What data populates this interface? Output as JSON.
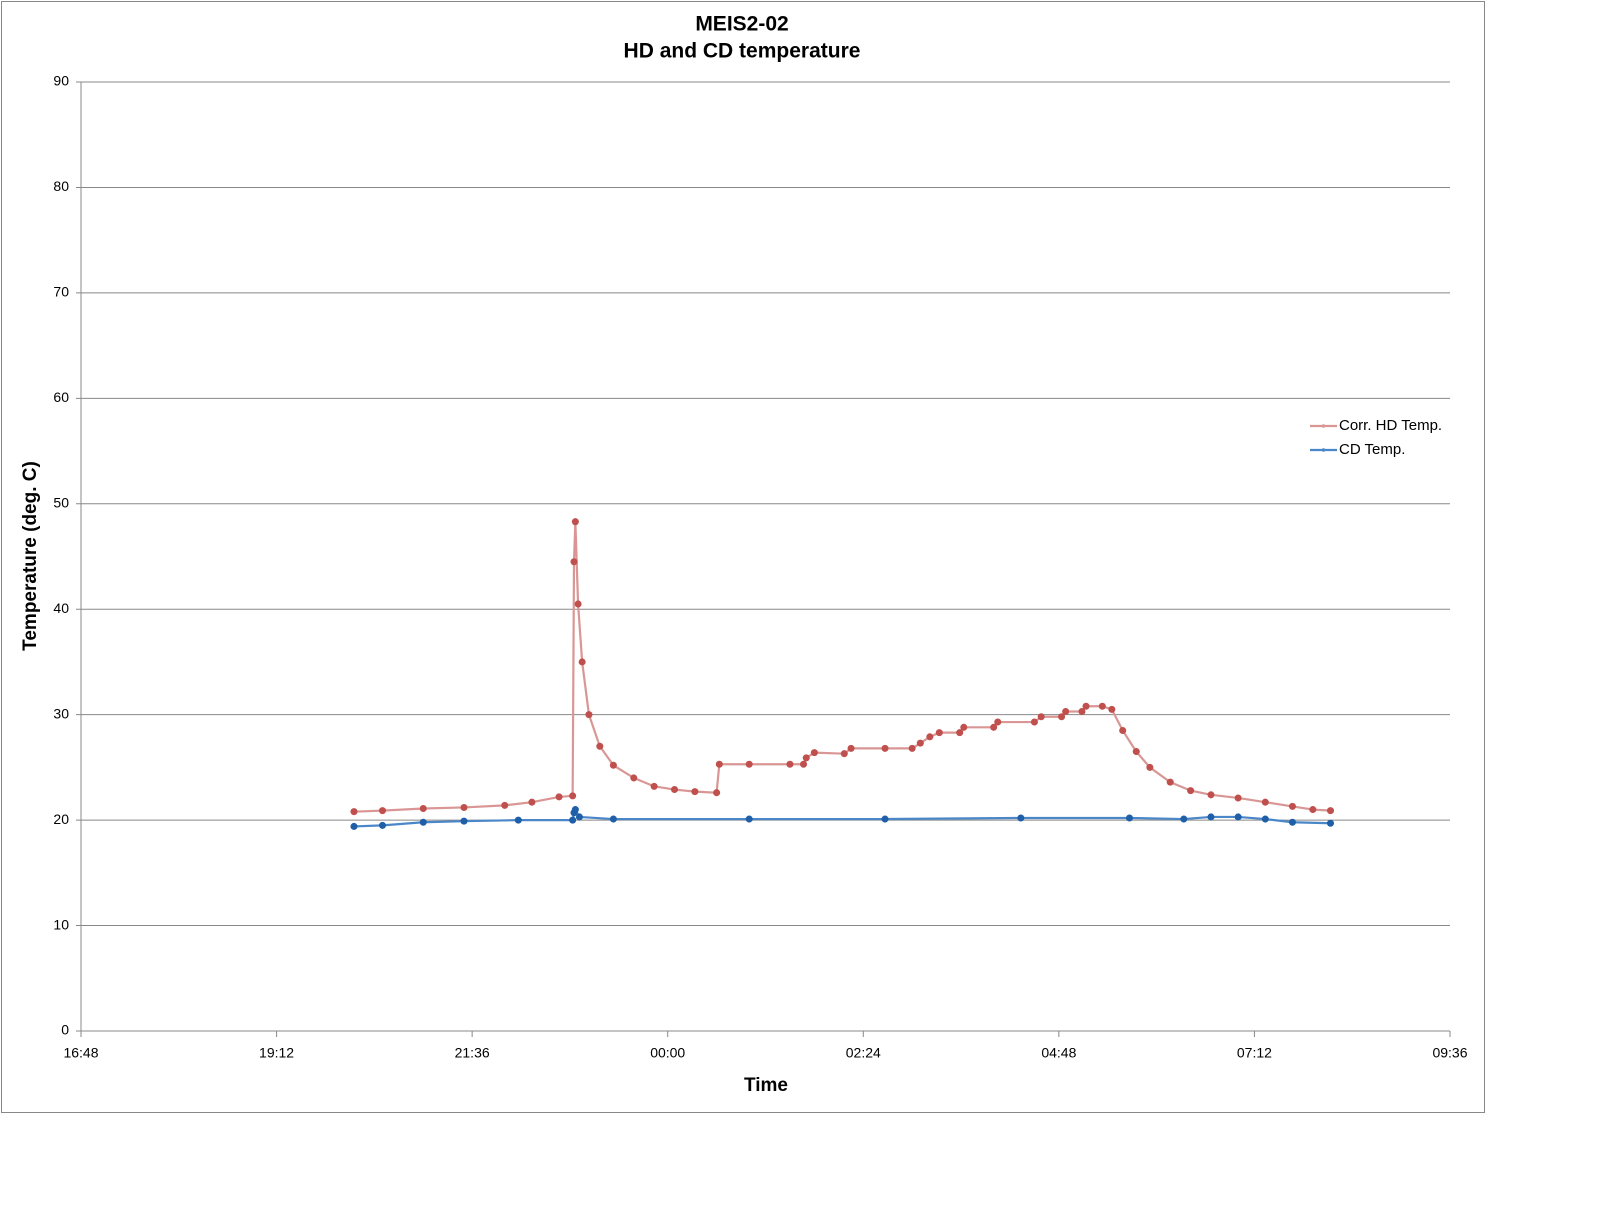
{
  "chart_data": {
    "type": "line",
    "title": "MEIS2-02",
    "subtitle": "HD and CD temperature",
    "x_label": "Time",
    "y_label": "Temperature (deg. C)",
    "xlim": [
      1008,
      2016
    ],
    "xticks": [
      {
        "value": 1008,
        "label": "16:48"
      },
      {
        "value": 1152,
        "label": "19:12"
      },
      {
        "value": 1296,
        "label": "21:36"
      },
      {
        "value": 1440,
        "label": "00:00"
      },
      {
        "value": 1584,
        "label": "02:24"
      },
      {
        "value": 1728,
        "label": "04:48"
      },
      {
        "value": 1872,
        "label": "07:12"
      },
      {
        "value": 2016,
        "label": "09:36"
      }
    ],
    "ylim": [
      0,
      90
    ],
    "yticks": [
      0,
      10,
      20,
      30,
      40,
      50,
      60,
      70,
      80,
      90
    ],
    "grid": true,
    "legend": "right",
    "series": [
      {
        "name": "Corr. HD Temp.",
        "color": "#d99694",
        "x": [
          1209,
          1230,
          1260,
          1290,
          1320,
          1340,
          1360,
          1370,
          1371,
          1372,
          1374,
          1377,
          1382,
          1390,
          1400,
          1415,
          1430,
          1445,
          1460,
          1476,
          1478,
          1500,
          1530,
          1540,
          1542,
          1548,
          1570,
          1575,
          1600,
          1620,
          1626,
          1633,
          1640,
          1655,
          1658,
          1680,
          1683,
          1710,
          1715,
          1730,
          1733,
          1745,
          1748,
          1760,
          1767,
          1775,
          1785,
          1795,
          1810,
          1825,
          1840,
          1860,
          1880,
          1900,
          1915,
          1928
        ],
        "values": [
          20.8,
          20.9,
          21.1,
          21.2,
          21.4,
          21.7,
          22.2,
          22.3,
          44.5,
          48.3,
          40.5,
          35,
          30,
          27,
          25.2,
          24,
          23.2,
          22.9,
          22.7,
          22.6,
          25.3,
          25.3,
          25.3,
          25.3,
          25.9,
          26.4,
          26.3,
          26.8,
          26.8,
          26.8,
          27.3,
          27.9,
          28.3,
          28.3,
          28.8,
          28.8,
          29.3,
          29.3,
          29.8,
          29.8,
          30.3,
          30.3,
          30.8,
          30.8,
          30.5,
          28.5,
          26.5,
          25,
          23.6,
          22.8,
          22.4,
          22.1,
          21.7,
          21.3,
          21.0,
          20.9
        ]
      },
      {
        "name": "CD Temp.",
        "color": "#4a86c8",
        "x": [
          1209,
          1230,
          1260,
          1290,
          1330,
          1370,
          1371,
          1372,
          1375,
          1400,
          1500,
          1600,
          1700,
          1780,
          1820,
          1840,
          1860,
          1880,
          1900,
          1928
        ],
        "values": [
          19.4,
          19.5,
          19.8,
          19.9,
          20.0,
          20.0,
          20.7,
          21.0,
          20.3,
          20.1,
          20.1,
          20.1,
          20.2,
          20.2,
          20.1,
          20.3,
          20.3,
          20.1,
          19.8,
          19.7
        ]
      }
    ]
  }
}
